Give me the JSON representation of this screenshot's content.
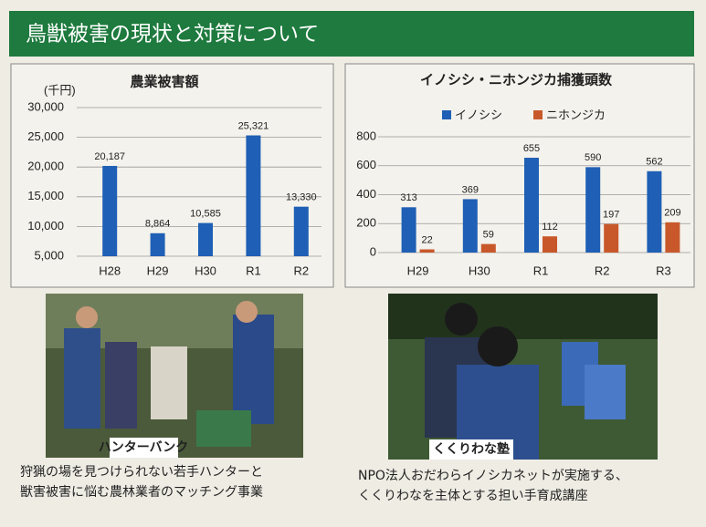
{
  "header": {
    "title": "鳥獣被害の現状と対策について"
  },
  "chart_data": [
    {
      "type": "bar",
      "title": "農業被害額",
      "unit": "(千円)",
      "categories": [
        "H28",
        "H29",
        "H30",
        "R1",
        "R2"
      ],
      "values": [
        20187,
        8864,
        10585,
        25321,
        13330
      ],
      "value_labels": [
        "20,187",
        "8,864",
        "10,585",
        "25,321",
        "13,330"
      ],
      "color": "#1f5fb5",
      "ylim": [
        5000,
        30000
      ],
      "yticks": [
        {
          "value": 5000,
          "label": "5,000"
        },
        {
          "value": 10000,
          "label": "10,000"
        },
        {
          "value": 15000,
          "label": "15,000"
        },
        {
          "value": 20000,
          "label": "20,000"
        },
        {
          "value": 25000,
          "label": "25,000"
        },
        {
          "value": 30000,
          "label": "30,000"
        }
      ],
      "grid": true
    },
    {
      "type": "grouped_bar",
      "title": "イノシシ・ニホンジカ捕獲頭数",
      "categories": [
        "H29",
        "H30",
        "R1",
        "R2",
        "R3"
      ],
      "series": [
        {
          "name": "イノシシ",
          "color": "#1f5fb5",
          "values": [
            313,
            369,
            655,
            590,
            562
          ]
        },
        {
          "name": "ニホンジカ",
          "color": "#c8582a",
          "values": [
            22,
            59,
            112,
            197,
            209
          ]
        }
      ],
      "ylim": [
        0,
        800
      ],
      "yticks": [
        0,
        200,
        400,
        600,
        800
      ],
      "grid": true
    }
  ],
  "photos": [
    {
      "title": "ハンターバンク",
      "caption": [
        "狩猟の場を見つけられない若手ハンターと",
        "獣害被害に悩む農林業者のマッチング事業"
      ]
    },
    {
      "title": "くくりわな塾",
      "caption": [
        "NPO法人おだわらイノシカネットが実施する、",
        "くくりわなを主体とする担い手育成講座"
      ]
    }
  ]
}
